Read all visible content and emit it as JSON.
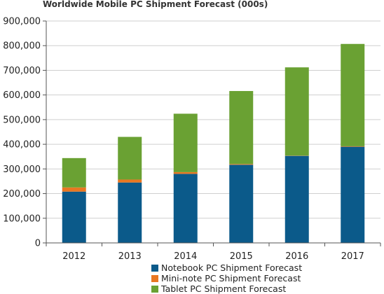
{
  "chart_data": {
    "type": "bar",
    "stacked": true,
    "title": "Worldwide Mobile PC Shipment Forecast (000s)",
    "categories": [
      "2012",
      "2013",
      "2014",
      "2015",
      "2016",
      "2017"
    ],
    "series": [
      {
        "name": "Notebook PC Shipment Forecast",
        "color": "#0b5a8a",
        "values": [
          208000,
          245000,
          280000,
          317000,
          353000,
          390000
        ]
      },
      {
        "name": "Mini-note PC Shipment Forecast",
        "color": "#e87722",
        "values": [
          17000,
          12000,
          7000,
          3000,
          1000,
          2000
        ]
      },
      {
        "name": "Tablet PC Shipment Forecast",
        "color": "#6aa133",
        "values": [
          119000,
          173000,
          237000,
          296000,
          358000,
          415000
        ]
      }
    ],
    "ylim": [
      0,
      900000
    ],
    "yticks": [
      "0",
      "100,000",
      "200,000",
      "300,000",
      "400,000",
      "500,000",
      "600,000",
      "700,000",
      "800,000",
      "900,000"
    ],
    "grid": true,
    "legend_position": "bottom"
  }
}
